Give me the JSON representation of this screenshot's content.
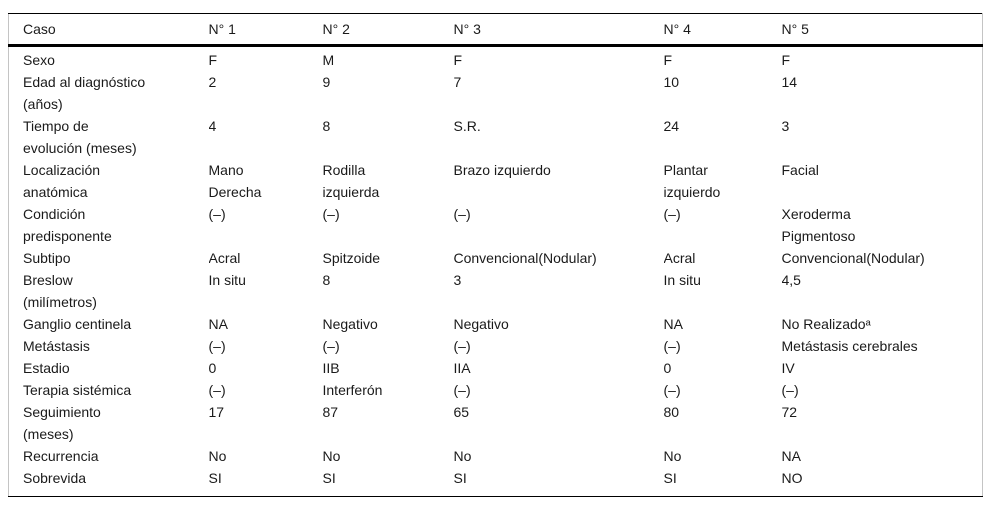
{
  "table": {
    "columns": [
      "Caso",
      "N° 1",
      "N° 2",
      "N° 3",
      "N° 4",
      "N° 5"
    ],
    "rows": [
      {
        "label": "Sexo",
        "values": [
          "F",
          "M",
          "F",
          "F",
          "F"
        ]
      },
      {
        "label": "Edad al diagnóstico\n(años)",
        "values": [
          "2",
          "9",
          "7",
          "10",
          "14"
        ]
      },
      {
        "label": "Tiempo de\nevolución (meses)",
        "values": [
          "4",
          "8",
          "S.R.",
          "24",
          "3"
        ]
      },
      {
        "label": "Localización\nanatómica",
        "values": [
          "Mano\nDerecha",
          "Rodilla\nizquierda",
          "Brazo izquierdo",
          "Plantar\nizquierdo",
          "Facial"
        ]
      },
      {
        "label": "Condición\npredisponente",
        "values": [
          "(–)",
          "(–)",
          "(–)",
          "(–)",
          "Xeroderma\nPigmentoso"
        ]
      },
      {
        "label": "Subtipo",
        "values": [
          "Acral",
          "Spitzoide",
          "Convencional(Nodular)",
          "Acral",
          "Convencional(Nodular)"
        ]
      },
      {
        "label": "Breslow\n(milímetros)",
        "values": [
          "In situ",
          "8",
          "3",
          "In situ",
          "4,5"
        ]
      },
      {
        "label": "Ganglio centinela",
        "values": [
          "NA",
          "Negativo",
          "Negativo",
          "NA",
          "No Realizadoᵃ"
        ]
      },
      {
        "label": "Metástasis",
        "values": [
          "(–)",
          "(–)",
          "(–)",
          "(–)",
          "Metástasis cerebrales"
        ]
      },
      {
        "label": "Estadio",
        "values": [
          "0",
          "IIB",
          "IIA",
          "0",
          "IV"
        ]
      },
      {
        "label": "Terapia sistémica",
        "values": [
          "(–)",
          "Interferón",
          "(–)",
          "(–)",
          "(–)"
        ]
      },
      {
        "label": "Seguimiento\n(meses)",
        "values": [
          "17",
          "87",
          "65",
          "80",
          "72"
        ]
      },
      {
        "label": "Recurrencia",
        "values": [
          "No",
          "No",
          "No",
          "No",
          "NA"
        ]
      },
      {
        "label": "Sobrevida",
        "values": [
          "SI",
          "SI",
          "SI",
          "SI",
          "NO"
        ]
      }
    ]
  }
}
